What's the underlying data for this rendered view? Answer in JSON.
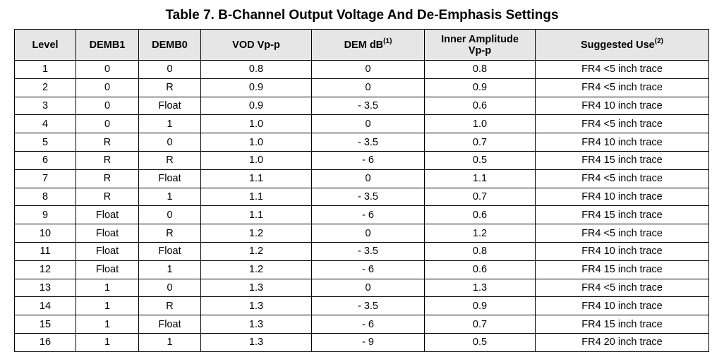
{
  "title": "Table 7. B-Channel Output Voltage And De-Emphasis Settings",
  "table": {
    "headers": [
      {
        "label": "Level",
        "sup": ""
      },
      {
        "label": "DEMB1",
        "sup": ""
      },
      {
        "label": "DEMB0",
        "sup": ""
      },
      {
        "label": "VOD Vp-p",
        "sup": ""
      },
      {
        "label": "DEM dB",
        "sup": "(1)"
      },
      {
        "label": "Inner Amplitude\nVp-p",
        "sup": ""
      },
      {
        "label": "Suggested Use",
        "sup": "(2)"
      }
    ],
    "rows": [
      [
        "1",
        "0",
        "0",
        "0.8",
        "0",
        "0.8",
        "FR4 <5 inch trace"
      ],
      [
        "2",
        "0",
        "R",
        "0.9",
        "0",
        "0.9",
        "FR4 <5 inch trace"
      ],
      [
        "3",
        "0",
        "Float",
        "0.9",
        "- 3.5",
        "0.6",
        "FR4 10 inch trace"
      ],
      [
        "4",
        "0",
        "1",
        "1.0",
        "0",
        "1.0",
        "FR4 <5 inch trace"
      ],
      [
        "5",
        "R",
        "0",
        "1.0",
        "- 3.5",
        "0.7",
        "FR4 10 inch trace"
      ],
      [
        "6",
        "R",
        "R",
        "1.0",
        "- 6",
        "0.5",
        "FR4 15 inch trace"
      ],
      [
        "7",
        "R",
        "Float",
        "1.1",
        "0",
        "1.1",
        "FR4 <5 inch trace"
      ],
      [
        "8",
        "R",
        "1",
        "1.1",
        "- 3.5",
        "0.7",
        "FR4 10 inch trace"
      ],
      [
        "9",
        "Float",
        "0",
        "1.1",
        "- 6",
        "0.6",
        "FR4 15 inch trace"
      ],
      [
        "10",
        "Float",
        "R",
        "1.2",
        "0",
        "1.2",
        "FR4 <5 inch trace"
      ],
      [
        "11",
        "Float",
        "Float",
        "1.2",
        "- 3.5",
        "0.8",
        "FR4 10 inch trace"
      ],
      [
        "12",
        "Float",
        "1",
        "1.2",
        "- 6",
        "0.6",
        "FR4 15 inch trace"
      ],
      [
        "13",
        "1",
        "0",
        "1.3",
        "0",
        "1.3",
        "FR4 <5 inch trace"
      ],
      [
        "14",
        "1",
        "R",
        "1.3",
        "- 3.5",
        "0.9",
        "FR4 10 inch trace"
      ],
      [
        "15",
        "1",
        "Float",
        "1.3",
        "- 6",
        "0.7",
        "FR4 15 inch trace"
      ],
      [
        "16",
        "1",
        "1",
        "1.3",
        "- 9",
        "0.5",
        "FR4 20 inch trace"
      ]
    ]
  },
  "colors": {
    "header_background": "#e6e6e6",
    "border": "#000000"
  }
}
